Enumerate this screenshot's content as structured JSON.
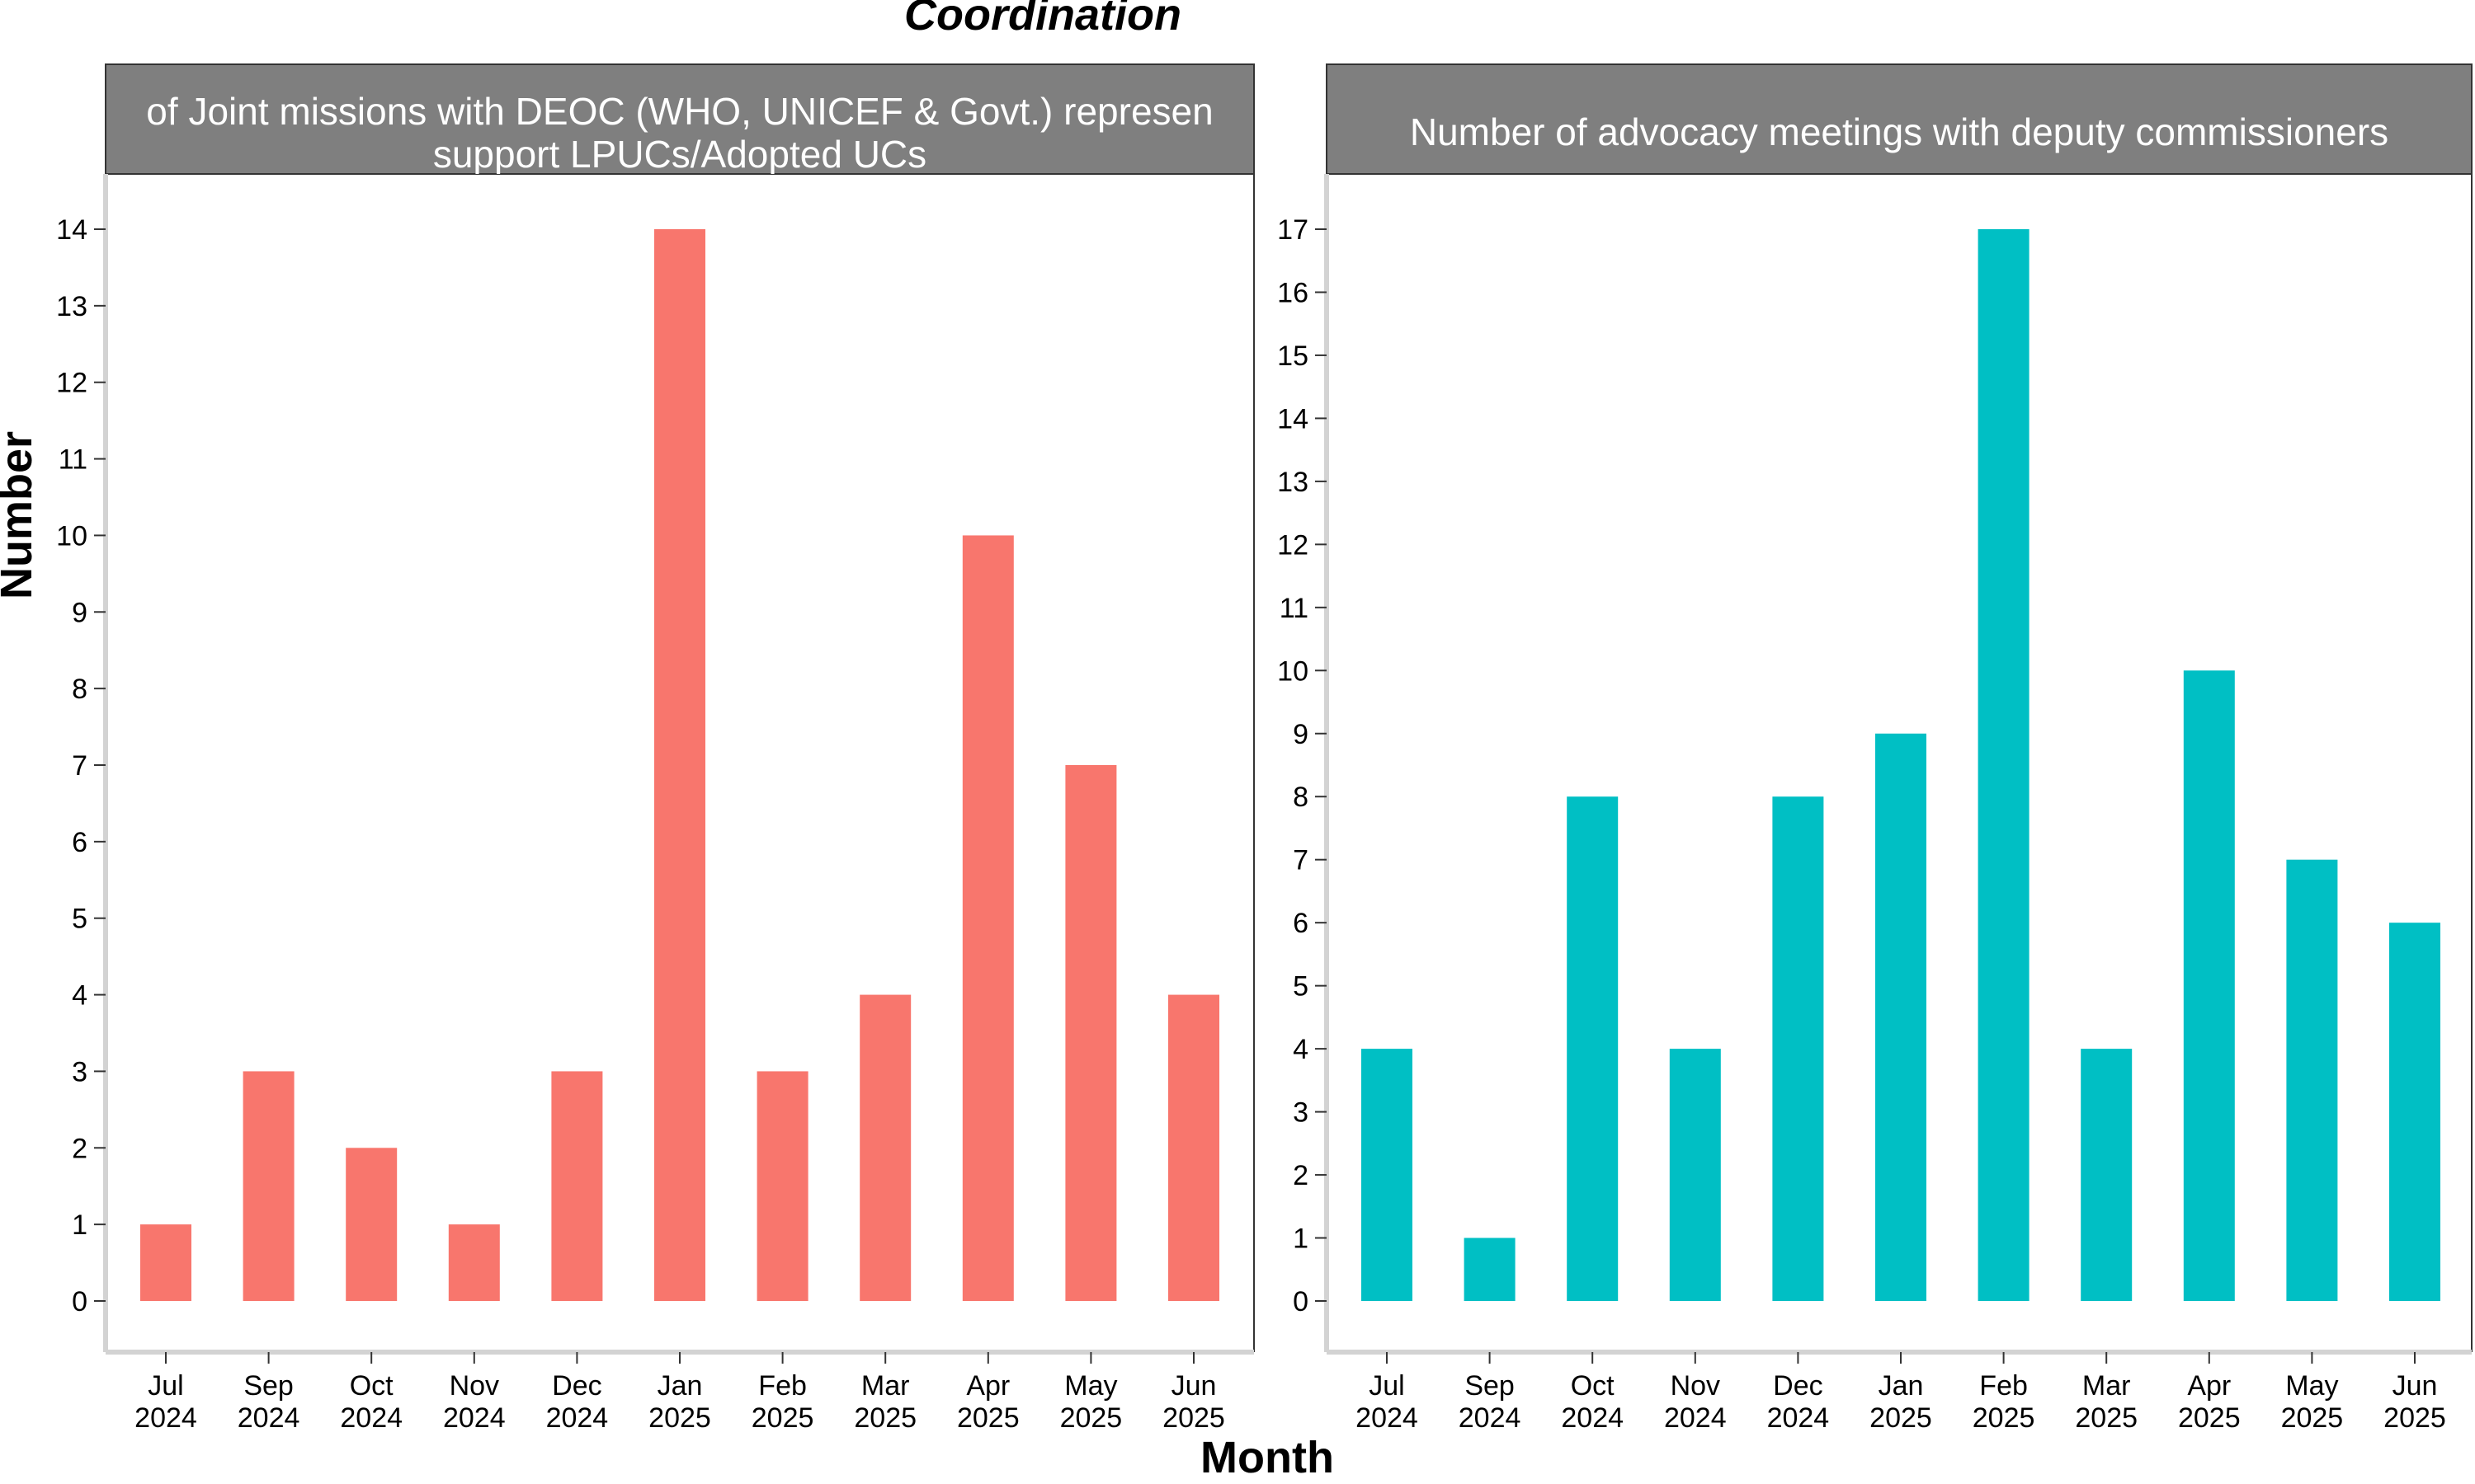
{
  "page_title": "Coordination",
  "xlabel": "Month",
  "ylabel": "Number",
  "colors": {
    "left_bars": "#F8766D",
    "right_bars": "#00BFC4",
    "strip_fill": "#7F7F7F",
    "axis_line": "#D3D3D3"
  },
  "chart_data": [
    {
      "type": "bar",
      "title_lines": [
        "of Joint missions with DEOC (WHO, UNICEF & Govt.) represen",
        "support LPUCs/Adopted UCs"
      ],
      "categories": [
        [
          "Jul",
          "2024"
        ],
        [
          "Sep",
          "2024"
        ],
        [
          "Oct",
          "2024"
        ],
        [
          "Nov",
          "2024"
        ],
        [
          "Dec",
          "2024"
        ],
        [
          "Jan",
          "2025"
        ],
        [
          "Feb",
          "2025"
        ],
        [
          "Mar",
          "2025"
        ],
        [
          "Apr",
          "2025"
        ],
        [
          "May",
          "2025"
        ],
        [
          "Jun",
          "2025"
        ]
      ],
      "values": [
        1,
        3,
        2,
        1,
        3,
        14,
        3,
        4,
        10,
        7,
        4
      ],
      "yticks": [
        0,
        1,
        2,
        3,
        4,
        5,
        6,
        7,
        8,
        9,
        10,
        11,
        12,
        13,
        14
      ],
      "ylim": [
        0,
        14
      ],
      "color": "#F8766D",
      "grid": false
    },
    {
      "type": "bar",
      "title_lines": [
        "Number of advocacy meetings with deputy commissioners"
      ],
      "categories": [
        [
          "Jul",
          "2024"
        ],
        [
          "Sep",
          "2024"
        ],
        [
          "Oct",
          "2024"
        ],
        [
          "Nov",
          "2024"
        ],
        [
          "Dec",
          "2024"
        ],
        [
          "Jan",
          "2025"
        ],
        [
          "Feb",
          "2025"
        ],
        [
          "Mar",
          "2025"
        ],
        [
          "Apr",
          "2025"
        ],
        [
          "May",
          "2025"
        ],
        [
          "Jun",
          "2025"
        ]
      ],
      "values": [
        4,
        1,
        8,
        4,
        8,
        9,
        17,
        4,
        10,
        7,
        6
      ],
      "yticks": [
        0,
        1,
        2,
        3,
        4,
        5,
        6,
        7,
        8,
        9,
        10,
        11,
        12,
        13,
        14,
        15,
        16,
        17
      ],
      "ylim": [
        0,
        17
      ],
      "color": "#00BFC4",
      "grid": false
    }
  ]
}
